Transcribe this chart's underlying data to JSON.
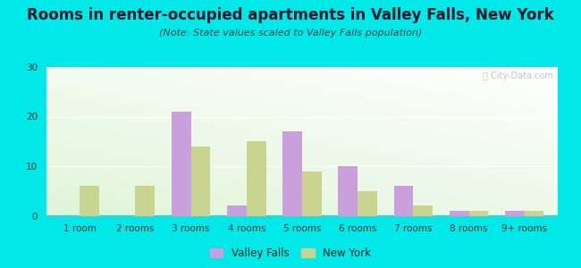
{
  "title": "Rooms in renter-occupied apartments in Valley Falls, New York",
  "subtitle": "(Note: State values scaled to Valley Falls population)",
  "categories": [
    "1 room",
    "2 rooms",
    "3 rooms",
    "4 rooms",
    "5 rooms",
    "6 rooms",
    "7 rooms",
    "8 rooms",
    "9+ rooms"
  ],
  "valley_falls": [
    0,
    0,
    21,
    2,
    17,
    10,
    6,
    1,
    1
  ],
  "new_york": [
    6,
    6,
    14,
    15,
    9,
    5,
    2,
    1,
    1
  ],
  "valley_falls_color": "#c9a0dc",
  "new_york_color": "#c8d490",
  "ylim": [
    0,
    30
  ],
  "yticks": [
    0,
    10,
    20,
    30
  ],
  "background_color": "#00e8e8",
  "title_fontsize": 12,
  "subtitle_fontsize": 8,
  "tick_fontsize": 7.5,
  "legend_fontsize": 8.5,
  "bar_width": 0.35
}
